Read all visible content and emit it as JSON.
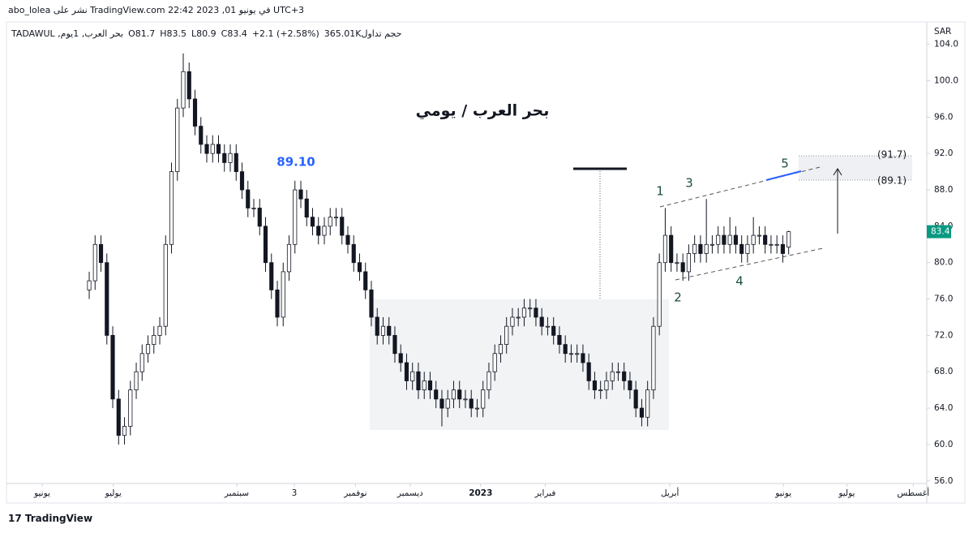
{
  "chart_data": {
    "type": "candlestick",
    "header": "abo_lolea نشر على TradingView.com في يونيو 01, 2023 22:42 UTC+3",
    "legend_texts": [
      "بحر العرب, 1يوم, TADAWUL",
      "O81.7",
      "H83.5",
      "L80.9",
      "C83.4",
      "+2.1 (+2.58%)",
      "حجم تداول365.01K"
    ],
    "title": "بحر العرب / يومي",
    "currency": "SAR",
    "footer": "TradingView",
    "last_price": 83.4,
    "last_price_color": "#089981",
    "annotations": [
      {
        "text": "89.10",
        "color": "#2962ff"
      },
      {
        "text": "1",
        "color": "#1b4d3e"
      },
      {
        "text": "2",
        "color": "#1b4d3e"
      },
      {
        "text": "3",
        "color": "#1b4d3e"
      },
      {
        "text": "4",
        "color": "#1b4d3e"
      },
      {
        "text": "5",
        "color": "#1b4d3e"
      },
      {
        "text": "(91.7)",
        "color": "#131722"
      },
      {
        "text": "(89.1)",
        "color": "#131722"
      }
    ],
    "ylim": [
      55.8,
      106.2
    ],
    "yticks": [
      {
        "value": 56,
        "label": "56.0"
      },
      {
        "value": 60,
        "label": "60.0"
      },
      {
        "value": 64,
        "label": "64.0"
      },
      {
        "value": 68,
        "label": "68.0"
      },
      {
        "value": 72,
        "label": "72.0"
      },
      {
        "value": 76,
        "label": "76.0"
      },
      {
        "value": 80,
        "label": "80.0"
      },
      {
        "value": 84,
        "label": "84.0"
      },
      {
        "value": 88,
        "label": "88.0"
      },
      {
        "value": 92,
        "label": "92.0"
      },
      {
        "value": 96,
        "label": "96.0"
      },
      {
        "value": 100,
        "label": "100.0"
      },
      {
        "value": 104,
        "label": "104.0"
      }
    ],
    "xlim": [
      -13.8,
      142.5
    ],
    "xticks": [
      {
        "value": -8,
        "label": "يونيو"
      },
      {
        "value": 4.1,
        "label": "يوليو"
      },
      {
        "value": 25.1,
        "label": "سبتمبر"
      },
      {
        "value": 34.9,
        "label": "3"
      },
      {
        "value": 45.3,
        "label": "نوفمبر"
      },
      {
        "value": 54.6,
        "label": "ديسمبر"
      },
      {
        "value": 66.6,
        "label": "2023"
      },
      {
        "value": 77.6,
        "label": "فبراير"
      },
      {
        "value": 98.8,
        "label": "أبريل"
      },
      {
        "value": 118.1,
        "label": "يونيو"
      },
      {
        "value": 128.9,
        "label": "يوليو"
      },
      {
        "value": 140.2,
        "label": "أغسطس"
      }
    ],
    "up_color": "#ffffff",
    "down_color": "#131722",
    "open": [
      77,
      78,
      82,
      80,
      72,
      65,
      61,
      62,
      66,
      68,
      70,
      71,
      72,
      73,
      82,
      90,
      97,
      101,
      98,
      95,
      93,
      92,
      93,
      92,
      91,
      92,
      90,
      88,
      86,
      86,
      84,
      80,
      77,
      74,
      79,
      82,
      88,
      87,
      85,
      84,
      83,
      84,
      85,
      85,
      83,
      82,
      80,
      79,
      77,
      74,
      72,
      73,
      72,
      70,
      69,
      67,
      68,
      66,
      67,
      66,
      65,
      64,
      65,
      66,
      65,
      65,
      64,
      64,
      66,
      68,
      70,
      71,
      73,
      74,
      74,
      75,
      75,
      74,
      73,
      73,
      72,
      71,
      70,
      70,
      70,
      69,
      67,
      66,
      66,
      67,
      68,
      68,
      67,
      66,
      64,
      63,
      66,
      73,
      80,
      83,
      80,
      80,
      79,
      81,
      82,
      81,
      82,
      82,
      83,
      82,
      83,
      82,
      81,
      82,
      83,
      83,
      82,
      82,
      82,
      81.7
    ],
    "high": [
      79,
      83,
      83,
      81,
      73,
      66,
      63,
      67,
      69,
      71,
      72,
      73,
      74,
      83,
      91,
      98,
      103,
      102,
      99,
      96,
      94,
      94,
      94,
      93,
      93,
      93,
      91,
      89,
      87,
      87,
      85,
      81,
      78,
      80,
      83,
      89,
      89,
      88,
      86,
      85,
      85,
      86,
      86,
      86,
      84,
      83,
      81,
      80,
      78,
      75,
      74,
      74,
      73,
      71,
      70,
      69,
      69,
      68,
      68,
      67,
      66,
      66,
      67,
      67,
      66,
      66,
      65,
      67,
      69,
      71,
      72,
      74,
      75,
      75,
      76,
      76,
      76,
      75,
      74,
      74,
      73,
      72,
      71,
      71,
      71,
      70,
      68,
      67,
      68,
      69,
      69,
      69,
      68,
      67,
      65,
      67,
      74,
      81,
      86,
      84,
      81,
      81,
      82,
      83,
      83,
      87,
      83,
      84,
      84,
      85,
      84,
      83,
      83,
      85,
      84,
      84,
      83,
      83,
      83,
      83.5
    ],
    "low": [
      76,
      77,
      79,
      71,
      64,
      60,
      60,
      61,
      65,
      67,
      69,
      70,
      71,
      72,
      81,
      89,
      96,
      97,
      94,
      92,
      91,
      91,
      91,
      90,
      90,
      89,
      87,
      85,
      85,
      83,
      79,
      76,
      73,
      73,
      78,
      81,
      86,
      84,
      83,
      82,
      82,
      83,
      84,
      82,
      81,
      79,
      78,
      76,
      73,
      71,
      71,
      71,
      69,
      68,
      66,
      66,
      65,
      65,
      65,
      64,
      62,
      63,
      64,
      64,
      64,
      63,
      63,
      63,
      65,
      67,
      69,
      70,
      72,
      73,
      73,
      74,
      73,
      72,
      72,
      71,
      70,
      69,
      69,
      69,
      68,
      66,
      65,
      65,
      65,
      66,
      67,
      66,
      65,
      63,
      62,
      62,
      65,
      72,
      79,
      79,
      79,
      78,
      78,
      80,
      80,
      80,
      81,
      81,
      81,
      81,
      81,
      80,
      80,
      81,
      82,
      81,
      81,
      81,
      80,
      80.9
    ],
    "close": [
      78,
      82,
      80,
      72,
      65,
      61,
      62,
      66,
      68,
      70,
      71,
      72,
      73,
      82,
      90,
      97,
      101,
      98,
      95,
      93,
      92,
      93,
      92,
      91,
      92,
      90,
      88,
      86,
      86,
      84,
      80,
      77,
      74,
      79,
      82,
      88,
      87,
      85,
      84,
      83,
      84,
      85,
      85,
      83,
      82,
      80,
      79,
      77,
      74,
      72,
      73,
      72,
      70,
      69,
      67,
      68,
      66,
      67,
      66,
      65,
      64,
      65,
      66,
      65,
      65,
      64,
      64,
      66,
      68,
      70,
      71,
      73,
      74,
      74,
      75,
      75,
      74,
      73,
      73,
      72,
      71,
      70,
      70,
      70,
      69,
      67,
      66,
      66,
      67,
      68,
      68,
      67,
      66,
      64,
      63,
      66,
      73,
      80,
      83,
      80,
      80,
      79,
      81,
      82,
      81,
      82,
      82,
      83,
      82,
      83,
      82,
      81,
      82,
      83,
      83,
      82,
      82,
      82,
      81,
      83.4
    ]
  }
}
